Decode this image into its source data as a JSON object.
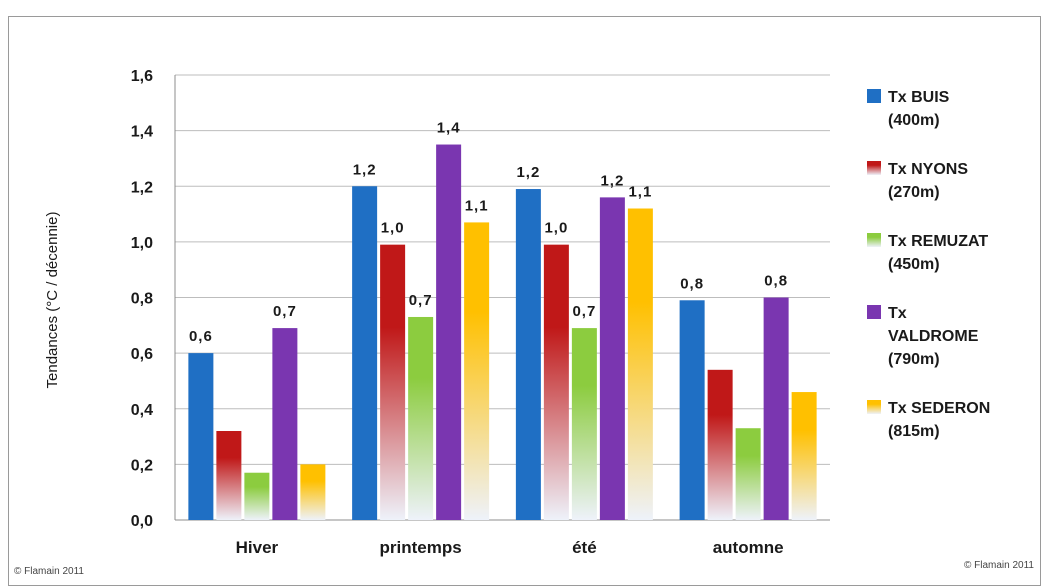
{
  "chart_data": {
    "type": "bar",
    "categories": [
      "Hiver",
      "printemps",
      "été",
      "automne"
    ],
    "ylabel": "Tendances (°C / décennie)",
    "ylim": [
      0,
      1.6
    ],
    "yticks": [
      "0,0",
      "0,2",
      "0,4",
      "0,6",
      "0,8",
      "1,0",
      "1,2",
      "1,4",
      "1,6"
    ],
    "grid": true,
    "legend_position": "right",
    "series": [
      {
        "name": "Tx BUIS (400m)",
        "legend_lines": [
          "Tx BUIS",
          "(400m)"
        ],
        "color": "#1f6fc4",
        "fade_to_white": false,
        "values": [
          0.6,
          1.2,
          1.19,
          0.79
        ],
        "labels": [
          "0,6",
          "1,2",
          "1,2",
          "0,8"
        ]
      },
      {
        "name": "Tx NYONS (270m)",
        "legend_lines": [
          "Tx NYONS",
          "(270m)"
        ],
        "color": "#c01818",
        "fade_to_white": true,
        "values": [
          0.32,
          0.99,
          0.99,
          0.54
        ],
        "labels": [
          "",
          "1,0",
          "1,0",
          ""
        ]
      },
      {
        "name": "Tx REMUZAT (450m)",
        "legend_lines": [
          "Tx REMUZAT",
          "(450m)"
        ],
        "color": "#8ccc3f",
        "fade_to_white": true,
        "values": [
          0.17,
          0.73,
          0.69,
          0.33
        ],
        "labels": [
          "",
          "0,7",
          "0,7",
          ""
        ]
      },
      {
        "name": "Tx VALDROME (790m)",
        "legend_lines": [
          "Tx",
          "VALDROME",
          "(790m)"
        ],
        "color": "#7a36b0",
        "fade_to_white": false,
        "values": [
          0.69,
          1.35,
          1.16,
          0.8
        ],
        "labels": [
          "0,7",
          "1,4",
          "1,2",
          "0,8"
        ]
      },
      {
        "name": "Tx SEDERON (815m)",
        "legend_lines": [
          "Tx SEDERON",
          "(815m)"
        ],
        "color": "#ffc000",
        "fade_to_white": true,
        "values": [
          0.2,
          1.07,
          1.12,
          0.46
        ],
        "labels": [
          "",
          "1,1",
          "1,1",
          ""
        ]
      }
    ]
  },
  "credits": {
    "left": "© Flamain 2011",
    "right": "© Flamain 2011"
  }
}
